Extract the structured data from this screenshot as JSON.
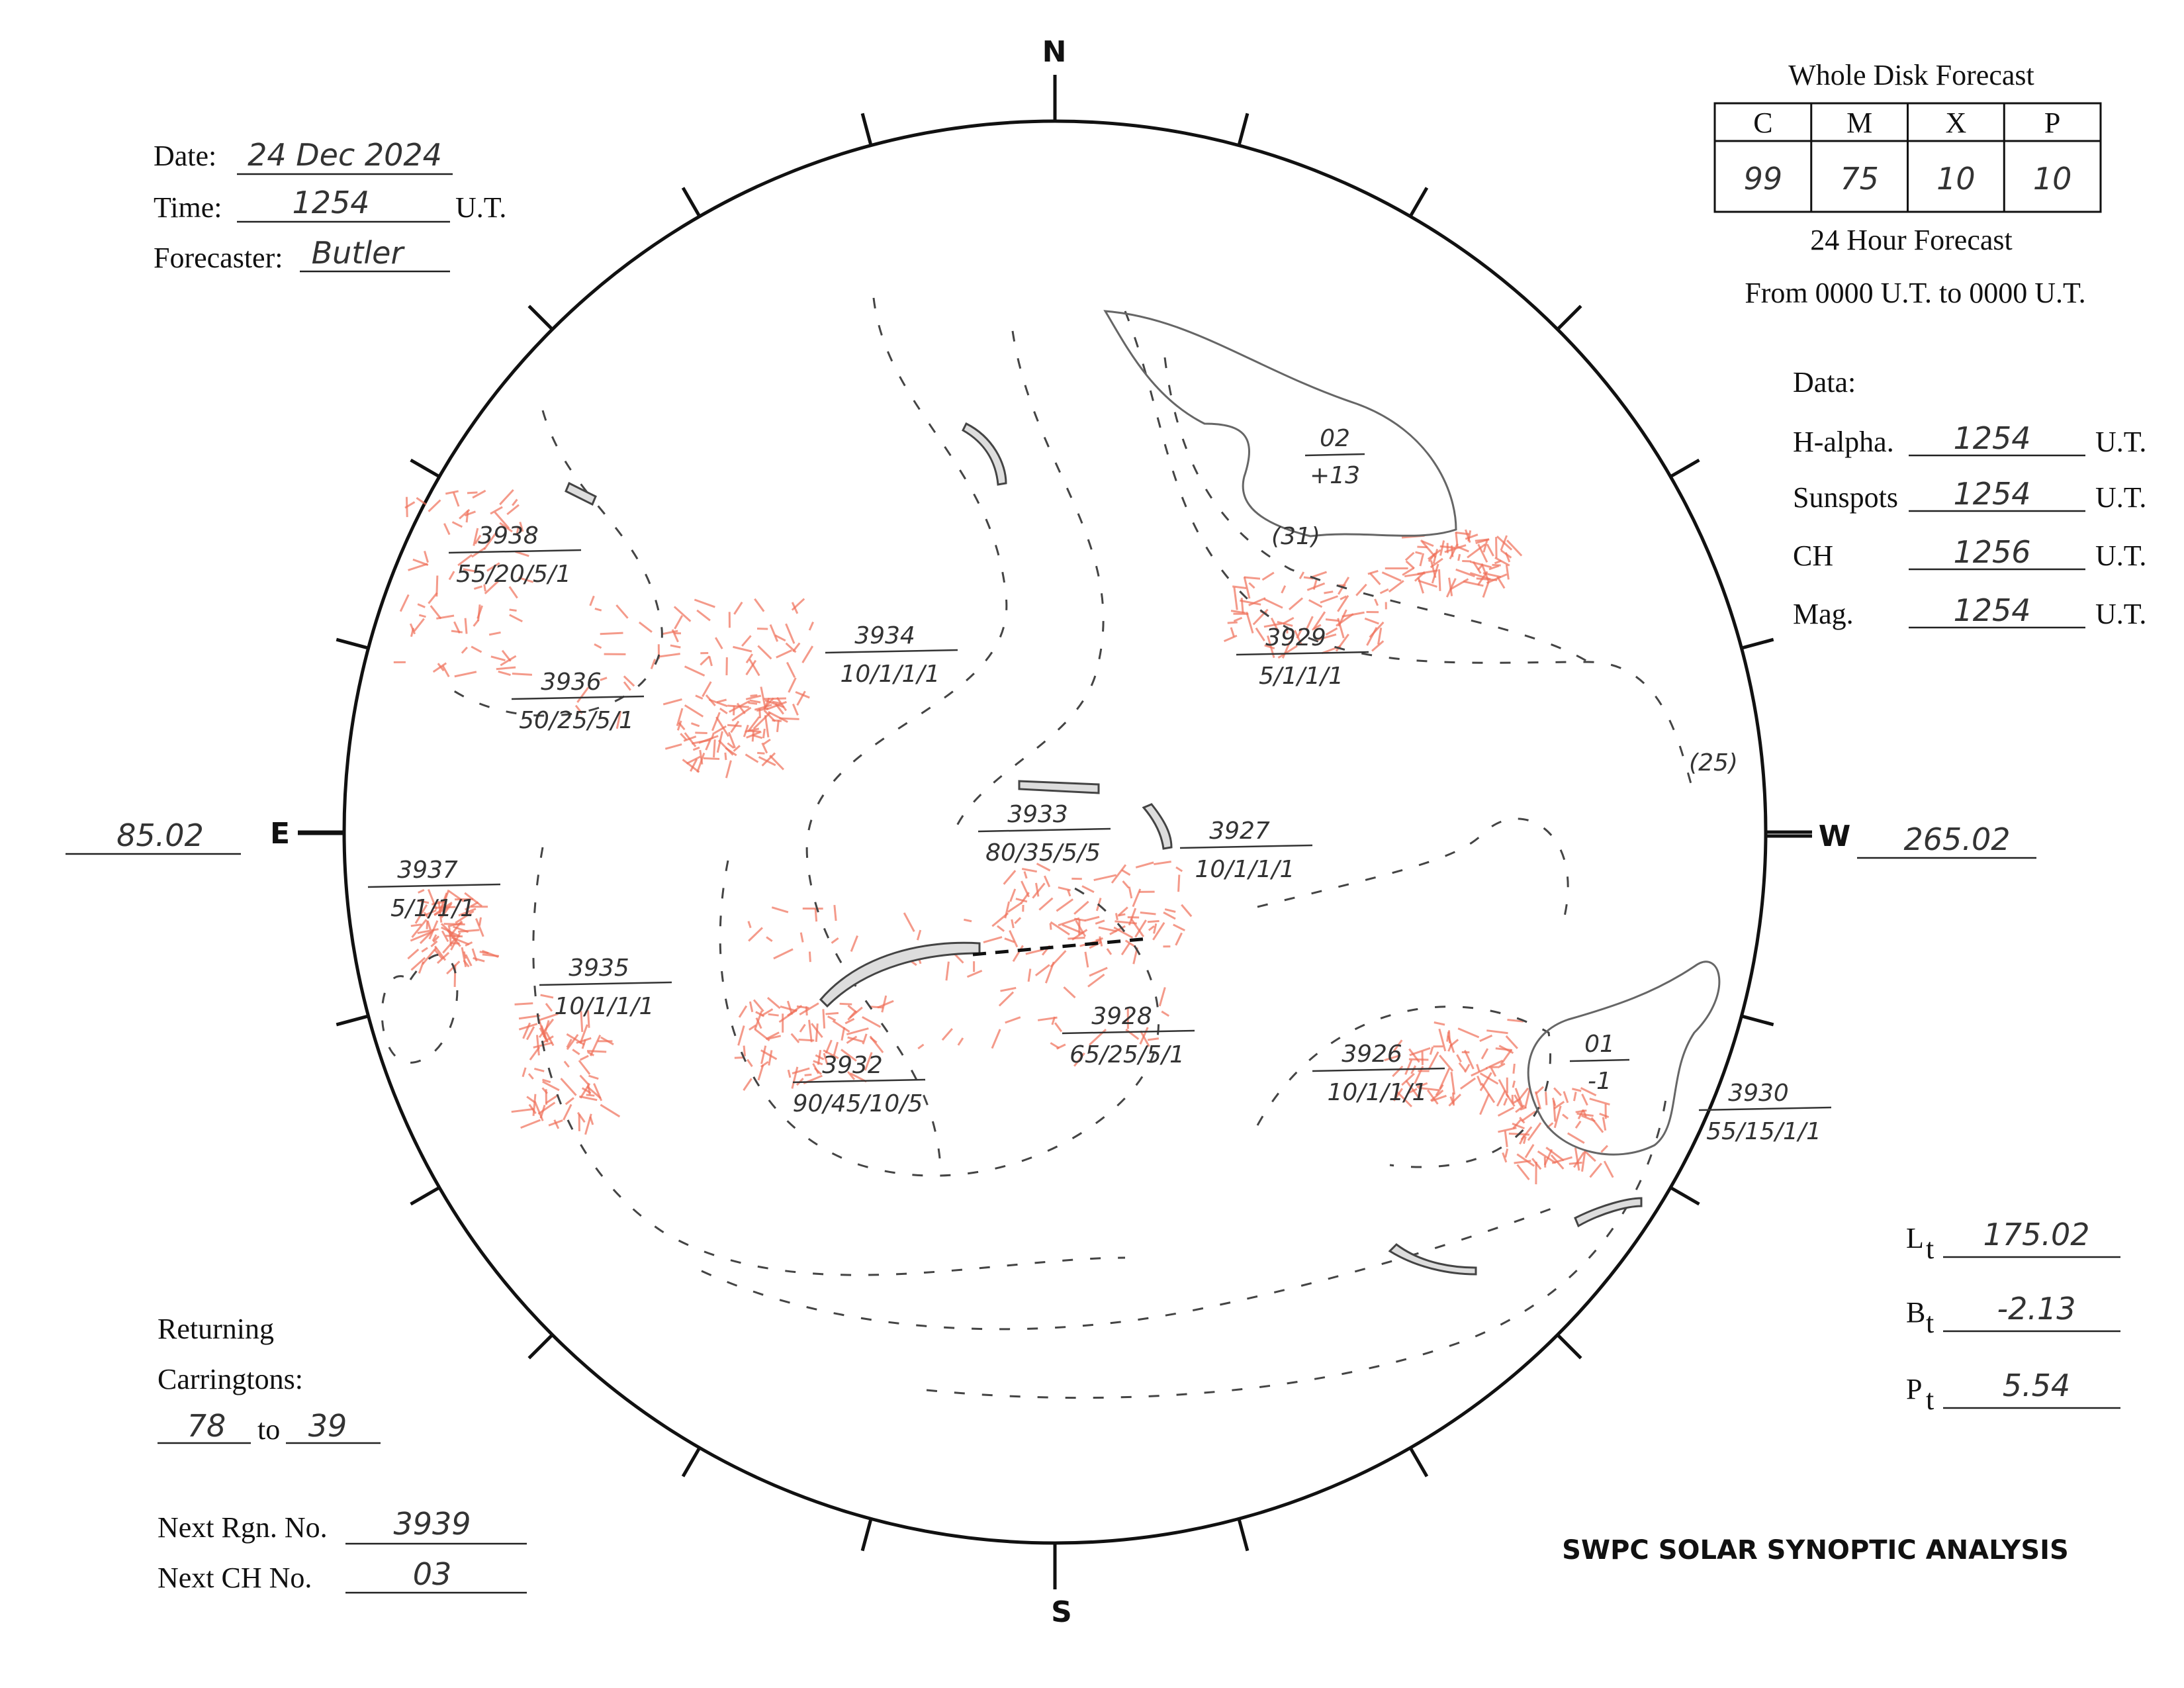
{
  "header": {
    "date_label": "Date:",
    "date": "24 Dec 2024",
    "time_label": "Time:",
    "time": "1254",
    "time_unit": "U.T.",
    "forecaster_label": "Forecaster:",
    "forecaster": "Butler"
  },
  "forecast": {
    "title": "Whole Disk Forecast",
    "columns": [
      "C",
      "M",
      "X",
      "P"
    ],
    "values": [
      "99",
      "75",
      "10",
      "10"
    ],
    "subtitle": "24 Hour Forecast",
    "period": "From 0000 U.T. to 0000 U.T."
  },
  "data_times": {
    "title": "Data:",
    "rows": [
      {
        "label": "H-alpha.",
        "value": "1254",
        "unit": "U.T."
      },
      {
        "label": "Sunspots",
        "value": "1254",
        "unit": "U.T."
      },
      {
        "label": "CH",
        "value": "1256",
        "unit": "U.T."
      },
      {
        "label": "Mag.",
        "value": "1254",
        "unit": "U.T."
      }
    ]
  },
  "compass": {
    "north": "N",
    "south": "S",
    "east": "E",
    "west": "W"
  },
  "longitudes": {
    "east": "85.02",
    "west": "265.02"
  },
  "regions": [
    {
      "number": "3938",
      "class": "55/20/5/1"
    },
    {
      "number": "3936",
      "class": "50/25/5/1"
    },
    {
      "number": "3934",
      "class": "10/1/1/1"
    },
    {
      "number": "3929",
      "class": "5/1/1/1"
    },
    {
      "number": "3933",
      "class": "80/35/5/5"
    },
    {
      "number": "3927",
      "class": "10/1/1/1"
    },
    {
      "number": "3937",
      "class": "5/1/1/1"
    },
    {
      "number": "3935",
      "class": "10/1/1/1"
    },
    {
      "number": "3928",
      "class": "65/25/5/1"
    },
    {
      "number": "3932",
      "class": "90/45/10/5"
    },
    {
      "number": "3926",
      "class": "10/1/1/1"
    },
    {
      "number": "3930",
      "class": "55/15/1/1"
    }
  ],
  "coronal_holes": [
    {
      "number": "02",
      "polarity": "+13"
    },
    {
      "number": "01",
      "polarity": "-1"
    }
  ],
  "filament_labels": [
    "(31)",
    "(25)"
  ],
  "ephemeris": [
    {
      "symbol": "L",
      "subscript": "t",
      "value": "175.02"
    },
    {
      "symbol": "B",
      "subscript": "t",
      "value": "-2.13"
    },
    {
      "symbol": "P",
      "subscript": "t",
      "value": "5.54"
    }
  ],
  "returning": {
    "label_1": "Returning",
    "label_2": "Carringtons:",
    "from": "78",
    "to_label": "to",
    "to": "39"
  },
  "next": {
    "rgn_label": "Next Rgn. No.",
    "rgn": "3939",
    "ch_label": "Next CH No.",
    "ch": "03"
  },
  "footer": "SWPC SOLAR SYNOPTIC ANALYSIS"
}
